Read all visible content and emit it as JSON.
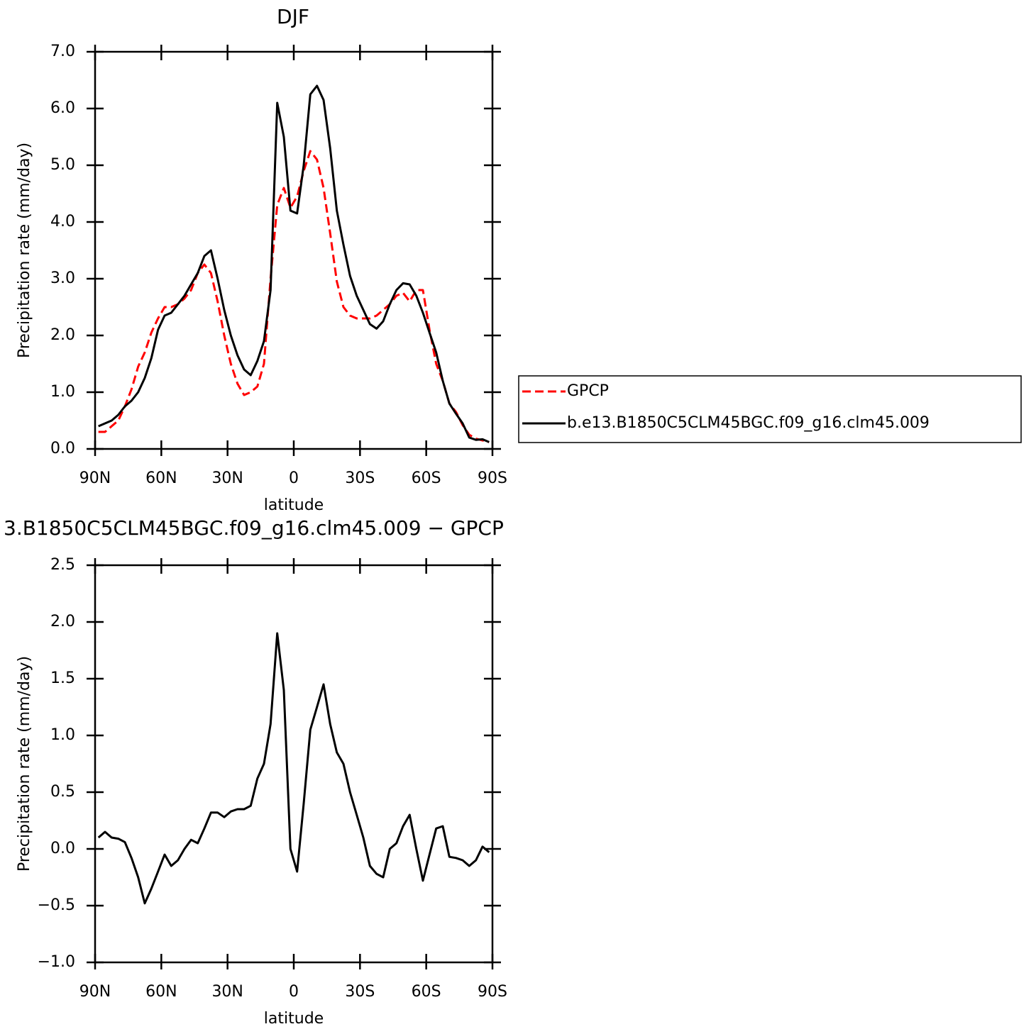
{
  "chart_data": [
    {
      "type": "line",
      "title": "DJF",
      "x_label": "latitude",
      "y_label": "Precipitation rate (mm/day)",
      "x": [
        88.5,
        85.5,
        82.5,
        79.5,
        76.5,
        73.5,
        70.5,
        67.5,
        64.5,
        61.5,
        58.5,
        55.5,
        52.5,
        49.5,
        46.5,
        43.5,
        40.5,
        37.5,
        34.5,
        31.5,
        28.5,
        25.5,
        22.5,
        19.5,
        16.5,
        13.5,
        10.5,
        7.5,
        4.5,
        1.5,
        -1.5,
        -4.5,
        -7.5,
        -10.5,
        -13.5,
        -16.5,
        -19.5,
        -22.5,
        -25.5,
        -28.5,
        -31.5,
        -34.5,
        -37.5,
        -40.5,
        -43.5,
        -46.5,
        -49.5,
        -52.5,
        -55.5,
        -58.5,
        -61.5,
        -64.5,
        -67.5,
        -70.5,
        -73.5,
        -76.5,
        -79.5,
        -82.5,
        -85.5,
        -88.5
      ],
      "xlim": [
        90,
        -90
      ],
      "xticks": [
        {
          "value": 90,
          "label": "90N"
        },
        {
          "value": 60,
          "label": "60N"
        },
        {
          "value": 30,
          "label": "30N"
        },
        0,
        {
          "value": -30,
          "label": "30S"
        },
        {
          "value": -60,
          "label": "60S"
        },
        {
          "value": -90,
          "label": "90S"
        }
      ],
      "ylim": [
        0,
        7
      ],
      "yticks": [
        {
          "value": 0,
          "label": "0.0"
        },
        {
          "value": 1,
          "label": "1.0"
        },
        {
          "value": 2,
          "label": "2.0"
        },
        {
          "value": 3,
          "label": "3.0"
        },
        {
          "value": 4,
          "label": "4.0"
        },
        {
          "value": 5,
          "label": "5.0"
        },
        {
          "value": 6,
          "label": "6.0"
        },
        {
          "value": 7,
          "label": "7.0"
        }
      ],
      "legend": "right",
      "series": [
        {
          "name": "GPCP",
          "color": "#ff0000",
          "dashed": true,
          "values": [
            0.3,
            0.3,
            0.4,
            0.5,
            0.75,
            1.05,
            1.45,
            1.7,
            2.05,
            2.3,
            2.5,
            2.5,
            2.55,
            2.65,
            2.8,
            3.1,
            3.25,
            3.1,
            2.6,
            2.0,
            1.5,
            1.15,
            0.95,
            1.0,
            1.1,
            1.5,
            3.0,
            4.3,
            4.6,
            4.25,
            4.45,
            4.9,
            5.25,
            5.1,
            4.6,
            3.8,
            2.95,
            2.5,
            2.35,
            2.3,
            2.3,
            2.3,
            2.35,
            2.45,
            2.55,
            2.7,
            2.75,
            2.6,
            2.8,
            2.8,
            2.1,
            1.5,
            1.2,
            0.8,
            0.65,
            0.42,
            0.25,
            0.18,
            0.15,
            0.12
          ]
        },
        {
          "name": "b.e13.B1850C5CLM45BGC.f09_g16.clm45.009",
          "color": "#000000",
          "dashed": false,
          "values": [
            0.4,
            0.45,
            0.5,
            0.6,
            0.75,
            0.85,
            1.0,
            1.25,
            1.6,
            2.1,
            2.35,
            2.4,
            2.55,
            2.7,
            2.9,
            3.1,
            3.4,
            3.5,
            3.0,
            2.45,
            2.0,
            1.65,
            1.4,
            1.3,
            1.55,
            1.9,
            2.8,
            6.1,
            5.5,
            4.2,
            4.15,
            5.0,
            6.25,
            6.4,
            6.15,
            5.3,
            4.2,
            3.6,
            3.05,
            2.7,
            2.45,
            2.2,
            2.12,
            2.25,
            2.55,
            2.8,
            2.92,
            2.9,
            2.7,
            2.4,
            2.05,
            1.7,
            1.2,
            0.8,
            0.62,
            0.45,
            0.2,
            0.16,
            0.17,
            0.12
          ]
        }
      ]
    },
    {
      "type": "line",
      "title": "3.B1850C5CLM45BGC.f09_g16.clm45.009 − GPCP",
      "x_label": "latitude",
      "y_label": "Precipitation rate (mm/day)",
      "x": [
        88.5,
        85.5,
        82.5,
        79.5,
        76.5,
        73.5,
        70.5,
        67.5,
        64.5,
        61.5,
        58.5,
        55.5,
        52.5,
        49.5,
        46.5,
        43.5,
        40.5,
        37.5,
        34.5,
        31.5,
        28.5,
        25.5,
        22.5,
        19.5,
        16.5,
        13.5,
        10.5,
        7.5,
        4.5,
        1.5,
        -1.5,
        -4.5,
        -7.5,
        -10.5,
        -13.5,
        -16.5,
        -19.5,
        -22.5,
        -25.5,
        -28.5,
        -31.5,
        -34.5,
        -37.5,
        -40.5,
        -43.5,
        -46.5,
        -49.5,
        -52.5,
        -55.5,
        -58.5,
        -61.5,
        -64.5,
        -67.5,
        -70.5,
        -73.5,
        -76.5,
        -79.5,
        -82.5,
        -85.5,
        -88.5
      ],
      "xlim": [
        90,
        -90
      ],
      "xticks": [
        {
          "value": 90,
          "label": "90N"
        },
        {
          "value": 60,
          "label": "60N"
        },
        {
          "value": 30,
          "label": "30N"
        },
        0,
        {
          "value": -30,
          "label": "30S"
        },
        {
          "value": -60,
          "label": "60S"
        },
        {
          "value": -90,
          "label": "90S"
        }
      ],
      "ylim": [
        -1,
        2.5
      ],
      "yticks": [
        {
          "value": -1,
          "label": "−1.0"
        },
        {
          "value": -0.5,
          "label": "−0.5"
        },
        {
          "value": 0,
          "label": "0.0"
        },
        0.5,
        {
          "value": 1,
          "label": "1.0"
        },
        1.5,
        {
          "value": 2,
          "label": "2.0"
        },
        2.5
      ],
      "series": [
        {
          "color": "#000000",
          "dashed": false,
          "values": [
            0.1,
            0.15,
            0.1,
            0.09,
            0.06,
            -0.08,
            -0.25,
            -0.48,
            -0.35,
            -0.2,
            -0.05,
            -0.15,
            -0.1,
            0.0,
            0.08,
            0.05,
            0.18,
            0.32,
            0.32,
            0.28,
            0.33,
            0.35,
            0.35,
            0.38,
            0.62,
            0.75,
            1.1,
            1.9,
            1.4,
            0.0,
            -0.2,
            0.4,
            1.05,
            1.25,
            1.45,
            1.1,
            0.85,
            0.75,
            0.5,
            0.3,
            0.1,
            -0.15,
            -0.22,
            -0.25,
            0.0,
            0.05,
            0.2,
            0.3,
            0.0,
            -0.28,
            -0.05,
            0.18,
            0.2,
            -0.07,
            -0.08,
            -0.1,
            -0.15,
            -0.1,
            0.02,
            -0.03
          ]
        }
      ]
    }
  ]
}
